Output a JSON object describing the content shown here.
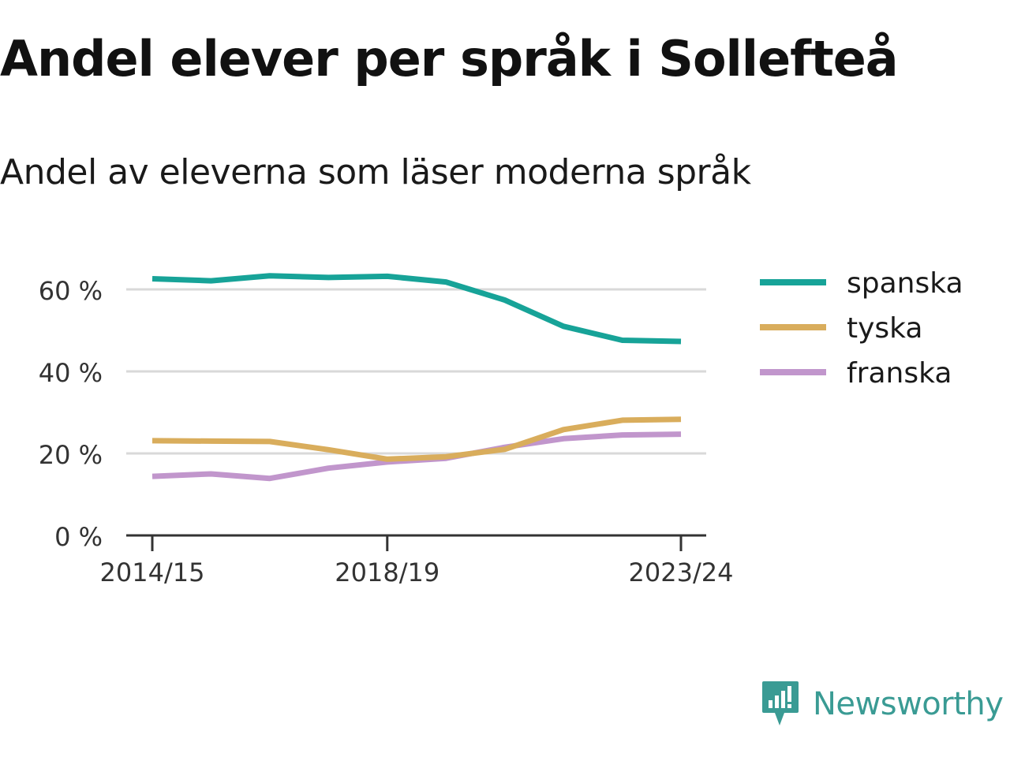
{
  "title": "Andel elever per språk i Sollefteå",
  "subtitle": "Andel av eleverna som läser moderna språk",
  "brand": {
    "name": "Newsworthy",
    "icon": "newsworthy-logo-icon",
    "color": "#3a9b94"
  },
  "chart_data": {
    "type": "line",
    "x": [
      "2014/15",
      "2015/16",
      "2016/17",
      "2017/18",
      "2018/19",
      "2019/20",
      "2020/21",
      "2021/22",
      "2022/23",
      "2023/24"
    ],
    "x_tick_labels": [
      "2014/15",
      "2018/19",
      "2023/24"
    ],
    "y_ticks": [
      0,
      20,
      40,
      60
    ],
    "y_tick_labels": [
      "0 %",
      "20 %",
      "40 %",
      "60 %"
    ],
    "ylim": [
      0,
      66
    ],
    "grid": true,
    "legend_position": "right",
    "series": [
      {
        "name": "spanska",
        "color": "#17a398",
        "values": [
          62.6,
          62.1,
          63.3,
          62.9,
          63.2,
          61.8,
          57.4,
          51.0,
          47.6,
          47.3
        ]
      },
      {
        "name": "tyska",
        "color": "#d9ad5c",
        "values": [
          23.1,
          23.0,
          22.9,
          20.9,
          18.6,
          19.2,
          21.0,
          25.8,
          28.1,
          28.3
        ]
      },
      {
        "name": "franska",
        "color": "#c196cc",
        "values": [
          14.4,
          15.0,
          13.9,
          16.4,
          17.9,
          18.8,
          21.5,
          23.6,
          24.5,
          24.7
        ]
      }
    ]
  }
}
